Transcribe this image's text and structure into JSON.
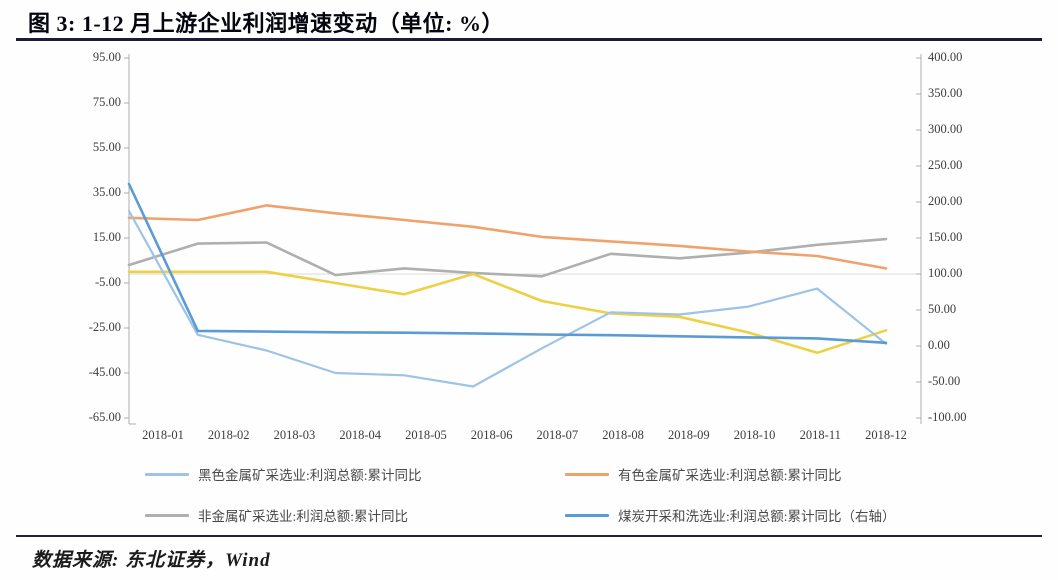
{
  "title": "图 3: 1-12 月上游企业利润增速变动（单位: %）",
  "source_note": "数据来源: 东北证券，Wind",
  "colors": {
    "ferrous_light_blue": "#9DC3E6",
    "nonferrous_orange": "#EFA26B",
    "nonmetal_gray": "#AFAFAF",
    "coal_dark_blue": "#5B9BD5",
    "unlabeled_yellow": "#EDD144",
    "axis_line": "#ADADAD",
    "gridline": "#DCDCDC",
    "title_rule": "#1C1C38"
  },
  "chart_data": {
    "type": "line",
    "title": "图 3: 1-12 月上游企业利润增速变动（单位: %）",
    "x_categories": [
      "2018-01",
      "2018-02",
      "2018-03",
      "2018-04",
      "2018-05",
      "2018-06",
      "2018-07",
      "2018-08",
      "2018-09",
      "2018-10",
      "2018-11",
      "2018-12"
    ],
    "left_axis": {
      "min": -65,
      "max": 95,
      "tick_step": 20,
      "ticks": [
        "95.00",
        "75.00",
        "55.00",
        "35.00",
        "15.00",
        "-5.00",
        "-25.00",
        "-45.00",
        "-65.00"
      ]
    },
    "right_axis": {
      "min": -100,
      "max": 400,
      "tick_step": 50,
      "ticks": [
        "400.00",
        "350.00",
        "300.00",
        "250.00",
        "200.00",
        "150.00",
        "100.00",
        "50.00",
        "0.00",
        "-50.00",
        "-100.00"
      ]
    },
    "grid": "single faint horizontal line at right-axis 100 level",
    "legend_position": "bottom",
    "series": [
      {
        "name": "黑色金属矿采选业:利润总额:累计同比",
        "axis": "left",
        "color": "#9DC3E6",
        "in_legend": true,
        "values": [
          27,
          -28,
          -35,
          -45,
          -46,
          -51,
          -34,
          -18,
          -19,
          -15.5,
          -7.5,
          -32
        ]
      },
      {
        "name": "有色金属矿采选业:利润总额:累计同比",
        "axis": "left",
        "color": "#EFA26B",
        "in_legend": true,
        "values": [
          24,
          23,
          29.5,
          26,
          23,
          20,
          15.5,
          13.5,
          11.5,
          9,
          7,
          1.5
        ]
      },
      {
        "name": "非金属矿采选业:利润总额:累计同比",
        "axis": "left",
        "color": "#AFAFAF",
        "in_legend": true,
        "values": [
          3,
          12.5,
          13,
          -1.5,
          1.5,
          -0.5,
          -2,
          8,
          6,
          8.5,
          12,
          14.5
        ]
      },
      {
        "name": "煤炭开采和洗选业:利润总额:累计同比（右轴）",
        "axis": "right",
        "color": "#5B9BD5",
        "in_legend": true,
        "values": [
          225,
          21,
          20,
          19,
          18.5,
          17.5,
          16,
          15,
          13.5,
          12,
          10.5,
          4.5
        ]
      },
      {
        "name": "",
        "axis": "left",
        "color": "#EDD144",
        "in_legend": false,
        "values": [
          0,
          0,
          0,
          -5,
          -10,
          -1,
          -13,
          -18.5,
          -20,
          -27,
          -36,
          -26
        ]
      }
    ]
  }
}
